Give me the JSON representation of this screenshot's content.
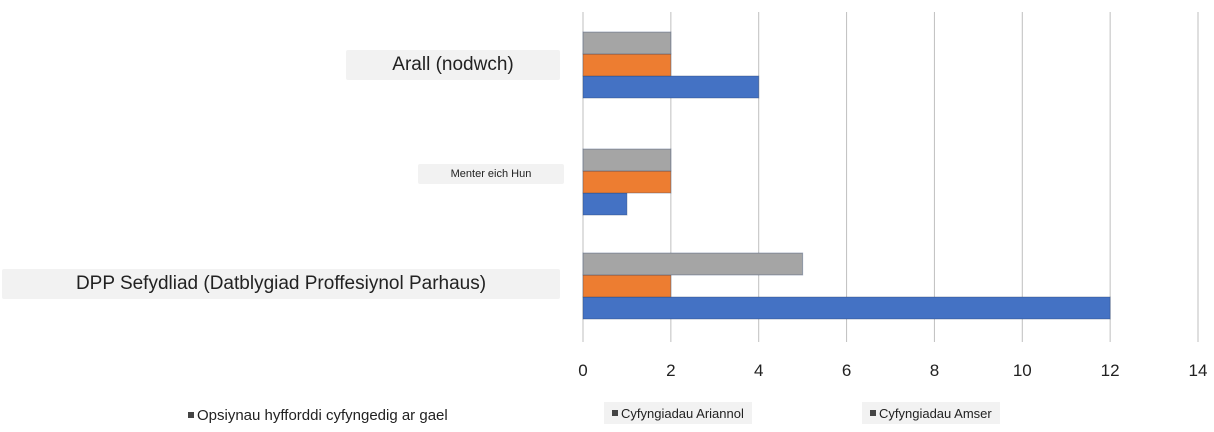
{
  "chart_data": {
    "type": "bar",
    "orientation": "horizontal",
    "title": "",
    "xlabel": "",
    "ylabel": "",
    "categories": [
      "DPP Sefydliad (Datblygiad Proffesiynol Parhaus)",
      "Menter eich Hun",
      "Arall (nodwch)"
    ],
    "series": [
      {
        "name": "Opsiynau hyfforddi cyfyngedig ar gael",
        "color": "#4472c4",
        "values": [
          12,
          1,
          4
        ]
      },
      {
        "name": "Cyfyngiadau Ariannol",
        "color": "#ed7d31",
        "values": [
          2,
          2,
          2
        ]
      },
      {
        "name": "Cyfyngiadau Amser",
        "color": "#a5a5a5",
        "values": [
          5,
          2,
          2
        ]
      }
    ],
    "xlim": [
      0,
      14
    ],
    "xticks": [
      "0",
      "2",
      "4",
      "6",
      "8",
      "10",
      "12",
      "14"
    ],
    "grid": "vertical",
    "legend_position": "bottom"
  }
}
